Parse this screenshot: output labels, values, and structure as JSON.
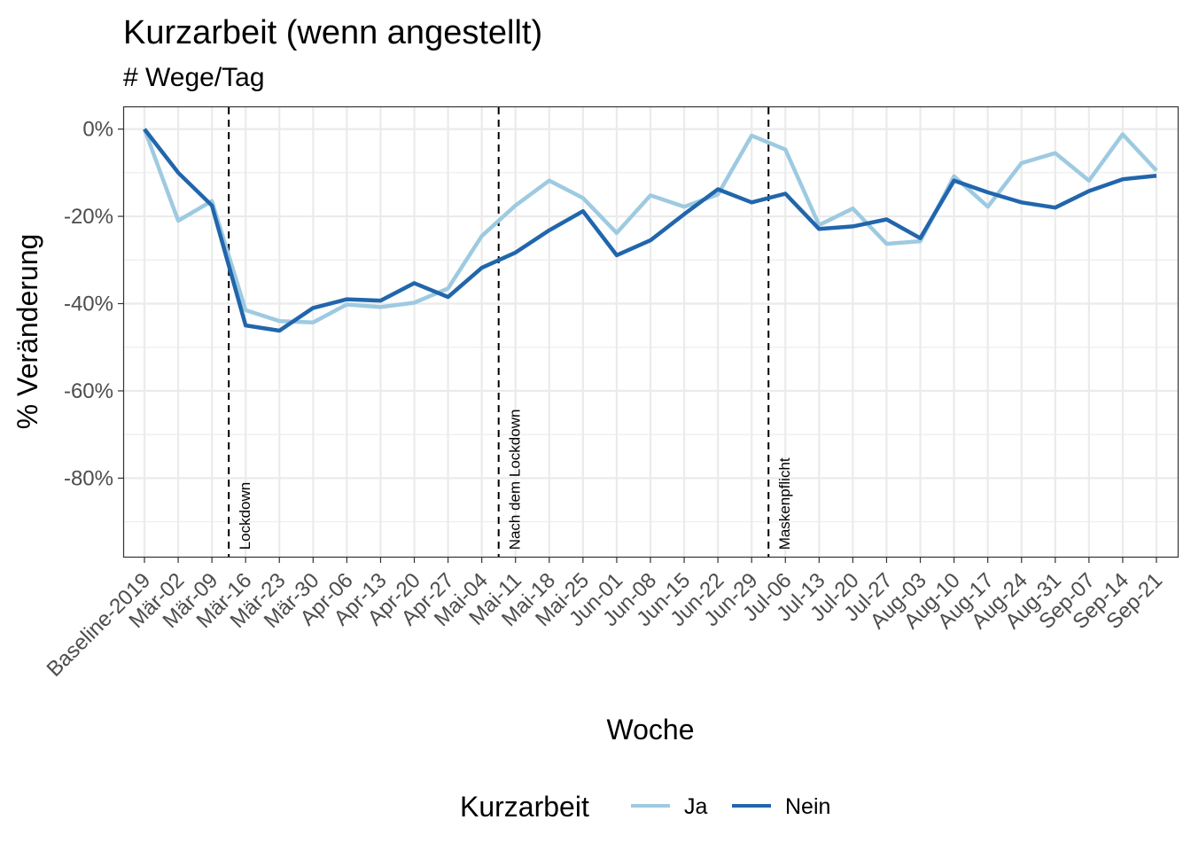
{
  "chart_data": {
    "type": "line",
    "title": "Kurzarbeit (wenn angestellt)",
    "subtitle": "# Wege/Tag",
    "xlabel": "Woche",
    "ylabel": "% Veränderung",
    "ylim": [
      -98,
      5
    ],
    "yticks": [
      0,
      -20,
      -40,
      -60,
      -80
    ],
    "ytick_labels": [
      "0%",
      "-20%",
      "-40%",
      "-60%",
      "-80%"
    ],
    "grid": true,
    "categories": [
      "Baseline-2019",
      "Mär-02",
      "Mär-09",
      "Mär-16",
      "Mär-23",
      "Mär-30",
      "Apr-06",
      "Apr-13",
      "Apr-20",
      "Apr-27",
      "Mai-04",
      "Mai-11",
      "Mai-18",
      "Mai-25",
      "Jun-01",
      "Jun-08",
      "Jun-15",
      "Jun-22",
      "Jun-29",
      "Jul-06",
      "Jul-13",
      "Jul-20",
      "Jul-27",
      "Aug-03",
      "Aug-10",
      "Aug-17",
      "Aug-24",
      "Aug-31",
      "Sep-07",
      "Sep-14",
      "Sep-21"
    ],
    "series": [
      {
        "name": "Ja",
        "color": "#9ECAE1",
        "values": [
          0,
          -21,
          -16.5,
          -41.5,
          -44,
          -44.3,
          -40.2,
          -40.8,
          -39.8,
          -36.5,
          -24.5,
          -17.5,
          -11.8,
          -15.8,
          -23.8,
          -15.2,
          -17.8,
          -15,
          -1.5,
          -4.7,
          -22,
          -18.2,
          -26.3,
          -25.7,
          -10.8,
          -17.8,
          -7.8,
          -5.5,
          -11.8,
          -1.2,
          -9.5
        ]
      },
      {
        "name": "Nein",
        "color": "#2166AC",
        "values": [
          0,
          -10,
          -17.5,
          -45,
          -46.2,
          -41,
          -39,
          -39.3,
          -35.3,
          -38.5,
          -31.8,
          -28.3,
          -23.2,
          -18.8,
          -28.9,
          -25.5,
          -19.5,
          -13.8,
          -16.8,
          -14.8,
          -22.9,
          -22.3,
          -20.7,
          -25,
          -11.8,
          -14.5,
          -16.8,
          -18,
          -14.2,
          -11.5,
          -10.7
        ]
      }
    ],
    "events": [
      {
        "label": "Lockdown",
        "position": 2.5
      },
      {
        "label": "Nach dem Lockdown",
        "position": 10.5
      },
      {
        "label": "Maskenpflicht",
        "position": 18.5
      }
    ],
    "legend": {
      "title": "Kurzarbeit",
      "position": "bottom",
      "entries": [
        "Ja",
        "Nein"
      ]
    }
  }
}
